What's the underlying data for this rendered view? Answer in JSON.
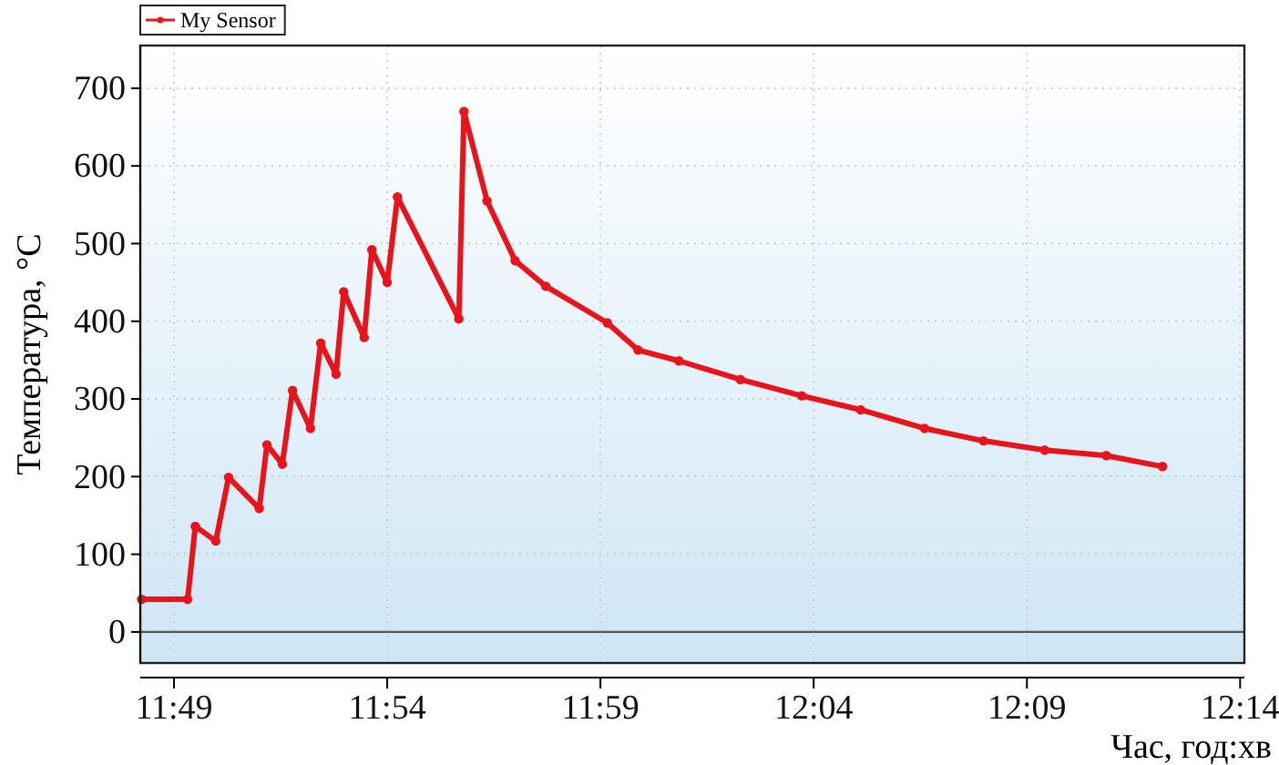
{
  "chart_data": {
    "type": "line",
    "xlabel": "Час, год:хв",
    "ylabel": "Температура, °C",
    "x": [
      11.804,
      11.822,
      11.825,
      11.833,
      11.838,
      11.85,
      11.853,
      11.859,
      11.863,
      11.87,
      11.874,
      11.88,
      11.883,
      11.891,
      11.894,
      11.9,
      11.904,
      11.928,
      11.93,
      11.939,
      11.95,
      11.962,
      11.986,
      11.998,
      12.014,
      12.038,
      12.062,
      12.085,
      12.11,
      12.133,
      12.157,
      12.181,
      12.203
    ],
    "series": [
      {
        "name": "My Sensor",
        "color": "#e8141c",
        "values": [
          42,
          42,
          136,
          117,
          199,
          159,
          241,
          216,
          311,
          262,
          372,
          332,
          438,
          379,
          492,
          450,
          560,
          403,
          670,
          555,
          478,
          445,
          398,
          363,
          349,
          325,
          304,
          286,
          262,
          246,
          234,
          227,
          213
        ]
      }
    ],
    "xlim": [
      11.8035,
      12.235
    ],
    "xticks": [
      {
        "value": 11.81667,
        "label": "11:49"
      },
      {
        "value": 11.9,
        "label": "11:54"
      },
      {
        "value": 11.98333,
        "label": "11:59"
      },
      {
        "value": 12.06667,
        "label": "12:04"
      },
      {
        "value": 12.15,
        "label": "12:09"
      },
      {
        "value": 12.23333,
        "label": "12:14"
      }
    ],
    "ylim": [
      -40,
      755
    ],
    "yticks": [
      0,
      100,
      200,
      300,
      400,
      500,
      600,
      700
    ],
    "ref_lines": [
      {
        "axis": "y",
        "value": 0,
        "color": "#555555"
      }
    ],
    "grid": true,
    "legend": "top left",
    "marker": "circle",
    "line_style": "solid"
  }
}
